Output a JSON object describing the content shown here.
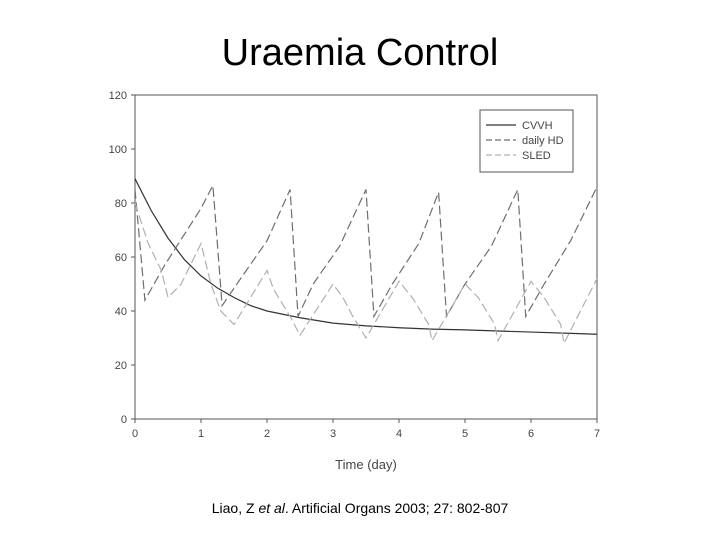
{
  "slide": {
    "title": "Uraemia Control"
  },
  "citation": {
    "author": "Liao, Z ",
    "etal": "et al",
    "rest": ". Artificial Organs 2003; 27: 802-807"
  },
  "colors": {
    "axis": "#555555",
    "CVVH": "#333333",
    "daily_HD": "#6e6e6e",
    "SLED": "#b0b0b0"
  },
  "chart_data": {
    "type": "line",
    "title": "",
    "xlabel": "Time (day)",
    "ylabel": "",
    "xlim": [
      0,
      7
    ],
    "ylim": [
      0,
      120
    ],
    "xticks": [
      0,
      1,
      2,
      3,
      4,
      5,
      6,
      7
    ],
    "yticks": [
      0,
      20,
      40,
      60,
      80,
      100,
      120
    ],
    "grid": false,
    "legend_position": "top-right",
    "series": [
      {
        "name": "CVVH",
        "style": "solid",
        "points": [
          [
            0,
            89
          ],
          [
            0.25,
            77
          ],
          [
            0.5,
            67
          ],
          [
            0.75,
            59
          ],
          [
            1.0,
            53
          ],
          [
            1.25,
            48.5
          ],
          [
            1.5,
            45
          ],
          [
            1.75,
            42
          ],
          [
            2.0,
            40
          ],
          [
            2.5,
            37.5
          ],
          [
            3.0,
            35.5
          ],
          [
            3.5,
            34.5
          ],
          [
            4.0,
            33.8
          ],
          [
            4.5,
            33.3
          ],
          [
            5.0,
            33
          ],
          [
            5.5,
            32.6
          ],
          [
            6.0,
            32.2
          ],
          [
            6.5,
            31.8
          ],
          [
            7.0,
            31.4
          ]
        ]
      },
      {
        "name": "daily HD",
        "style": "dash",
        "points": [
          [
            0,
            85
          ],
          [
            0.15,
            44
          ],
          [
            0.45,
            57
          ],
          [
            1.0,
            78
          ],
          [
            1.18,
            86.5
          ],
          [
            1.32,
            42
          ],
          [
            1.6,
            52
          ],
          [
            2.0,
            66
          ],
          [
            2.35,
            85
          ],
          [
            2.47,
            38
          ],
          [
            2.7,
            50
          ],
          [
            3.1,
            64
          ],
          [
            3.5,
            85
          ],
          [
            3.62,
            38
          ],
          [
            3.9,
            50
          ],
          [
            4.3,
            65
          ],
          [
            4.6,
            84
          ],
          [
            4.72,
            38
          ],
          [
            5.0,
            50
          ],
          [
            5.4,
            64
          ],
          [
            5.8,
            85
          ],
          [
            5.92,
            38
          ],
          [
            6.2,
            50
          ],
          [
            6.6,
            66
          ],
          [
            7.0,
            86
          ]
        ]
      },
      {
        "name": "SLED",
        "style": "dash",
        "points": [
          [
            0,
            80
          ],
          [
            0.2,
            65
          ],
          [
            0.4,
            55
          ],
          [
            0.5,
            45
          ],
          [
            0.7,
            50
          ],
          [
            1.0,
            65
          ],
          [
            1.15,
            50
          ],
          [
            1.3,
            40
          ],
          [
            1.5,
            35
          ],
          [
            2.0,
            55
          ],
          [
            2.1,
            48
          ],
          [
            2.35,
            38
          ],
          [
            2.5,
            31
          ],
          [
            3.0,
            50
          ],
          [
            3.15,
            45
          ],
          [
            3.3,
            38
          ],
          [
            3.5,
            30
          ],
          [
            4.0,
            51
          ],
          [
            4.2,
            45
          ],
          [
            4.45,
            35
          ],
          [
            4.5,
            29
          ],
          [
            5.0,
            50
          ],
          [
            5.2,
            45
          ],
          [
            5.45,
            35
          ],
          [
            5.5,
            29
          ],
          [
            6.0,
            51
          ],
          [
            6.2,
            45
          ],
          [
            6.45,
            35
          ],
          [
            6.5,
            28
          ],
          [
            7.0,
            52
          ]
        ]
      }
    ]
  }
}
